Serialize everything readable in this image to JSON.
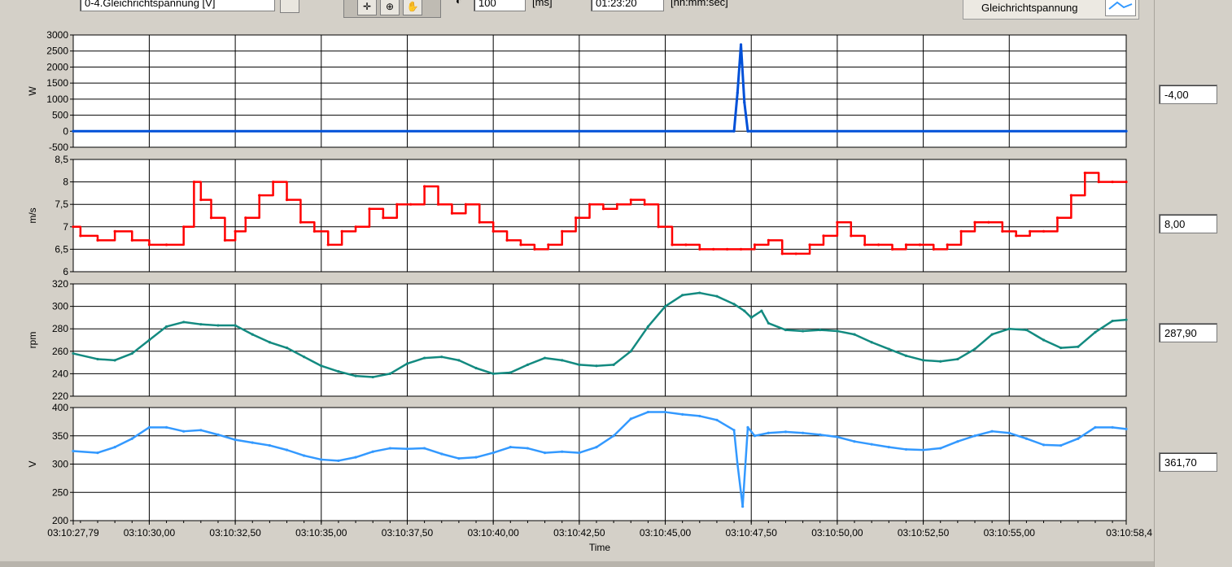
{
  "toolbar": {
    "channel_select": "0-4.Gleichrichtspannung [V]",
    "interval_value": "100",
    "interval_unit": "[ms]",
    "time_value": "01:23:20",
    "time_unit": "[hh:mm:sec]"
  },
  "legend": {
    "name": "Gleichrichtspannung",
    "color": "#3399ff"
  },
  "value_displays": [
    "-4,00",
    "8,00",
    "287,90",
    "361,70"
  ],
  "chart_data": [
    {
      "type": "line",
      "ylabel": "W",
      "yticks": [
        "3000",
        "2500",
        "2000",
        "1500",
        "1000",
        "500",
        "0",
        "-500"
      ],
      "ylim": [
        -500,
        3000
      ],
      "color": "#0050d8",
      "x": [
        27.79,
        47.0,
        47.1,
        47.2,
        47.3,
        47.4,
        47.5,
        58.4
      ],
      "values": [
        0,
        0,
        1200,
        2700,
        900,
        0,
        0,
        0
      ]
    },
    {
      "type": "line",
      "ylabel": "m/s",
      "yticks": [
        "8,5",
        "8",
        "7,5",
        "7",
        "6,5",
        "6"
      ],
      "ylim": [
        6,
        8.5
      ],
      "color": "#ff0000",
      "x": [
        27.79,
        28.0,
        28.5,
        29.0,
        29.5,
        30.0,
        30.5,
        31.0,
        31.3,
        31.5,
        31.8,
        32.2,
        32.5,
        32.8,
        33.2,
        33.6,
        34.0,
        34.4,
        34.8,
        35.2,
        35.6,
        36.0,
        36.4,
        36.8,
        37.2,
        37.6,
        38.0,
        38.4,
        38.8,
        39.2,
        39.6,
        40.0,
        40.4,
        40.8,
        41.2,
        41.6,
        42.0,
        42.4,
        42.8,
        43.2,
        43.6,
        44.0,
        44.4,
        44.8,
        45.2,
        45.6,
        46.0,
        46.4,
        46.8,
        47.2,
        47.6,
        48.0,
        48.4,
        48.8,
        49.2,
        49.6,
        50.0,
        50.4,
        50.8,
        51.2,
        51.6,
        52.0,
        52.4,
        52.8,
        53.2,
        53.6,
        54.0,
        54.4,
        54.8,
        55.2,
        55.6,
        56.0,
        56.4,
        56.8,
        57.2,
        57.6,
        58.0,
        58.4
      ],
      "values": [
        7.0,
        6.8,
        6.7,
        6.9,
        6.7,
        6.6,
        6.6,
        7.0,
        8.0,
        7.6,
        7.2,
        6.7,
        6.9,
        7.2,
        7.7,
        8.0,
        7.6,
        7.1,
        6.9,
        6.6,
        6.9,
        7.0,
        7.4,
        7.2,
        7.5,
        7.5,
        7.9,
        7.5,
        7.3,
        7.5,
        7.1,
        6.9,
        6.7,
        6.6,
        6.5,
        6.6,
        6.9,
        7.2,
        7.5,
        7.4,
        7.5,
        7.6,
        7.5,
        7.0,
        6.6,
        6.6,
        6.5,
        6.5,
        6.5,
        6.5,
        6.6,
        6.7,
        6.4,
        6.4,
        6.6,
        6.8,
        7.1,
        6.8,
        6.6,
        6.6,
        6.5,
        6.6,
        6.6,
        6.5,
        6.6,
        6.9,
        7.1,
        7.1,
        6.9,
        6.8,
        6.9,
        6.9,
        7.2,
        7.7,
        8.2,
        8.0,
        8.0,
        8.0
      ]
    },
    {
      "type": "line",
      "ylabel": "rpm",
      "yticks": [
        "320",
        "300",
        "280",
        "260",
        "240",
        "220"
      ],
      "ylim": [
        220,
        320
      ],
      "color": "#138a80",
      "x": [
        27.79,
        28.5,
        29.0,
        29.5,
        30.0,
        30.5,
        31.0,
        31.5,
        32.0,
        32.5,
        33.0,
        33.5,
        34.0,
        34.5,
        35.0,
        35.5,
        36.0,
        36.5,
        37.0,
        37.5,
        38.0,
        38.5,
        39.0,
        39.5,
        40.0,
        40.5,
        41.0,
        41.5,
        42.0,
        42.5,
        43.0,
        43.5,
        44.0,
        44.5,
        45.0,
        45.5,
        46.0,
        46.5,
        47.0,
        47.3,
        47.5,
        47.8,
        48.0,
        48.5,
        49.0,
        49.5,
        50.0,
        50.5,
        51.0,
        51.5,
        52.0,
        52.5,
        53.0,
        53.5,
        54.0,
        54.5,
        55.0,
        55.5,
        56.0,
        56.5,
        57.0,
        57.5,
        58.0,
        58.4
      ],
      "values": [
        258,
        253,
        252,
        258,
        270,
        282,
        286,
        284,
        283,
        283,
        275,
        268,
        263,
        255,
        247,
        242,
        238,
        237,
        240,
        249,
        254,
        255,
        252,
        245,
        240,
        241,
        248,
        254,
        252,
        248,
        247,
        248,
        260,
        282,
        300,
        310,
        312,
        309,
        302,
        296,
        290,
        296,
        285,
        279,
        278,
        279,
        278,
        275,
        268,
        262,
        256,
        252,
        251,
        253,
        262,
        275,
        280,
        279,
        270,
        263,
        264,
        277,
        287,
        288
      ]
    },
    {
      "type": "line",
      "ylabel": "V",
      "yticks": [
        "400",
        "350",
        "300",
        "250",
        "200"
      ],
      "ylim": [
        200,
        400
      ],
      "color": "#3399ff",
      "x": [
        27.79,
        28.5,
        29.0,
        29.5,
        30.0,
        30.5,
        31.0,
        31.5,
        32.0,
        32.5,
        33.0,
        33.5,
        34.0,
        34.5,
        35.0,
        35.5,
        36.0,
        36.5,
        37.0,
        37.5,
        38.0,
        38.5,
        39.0,
        39.5,
        40.0,
        40.5,
        41.0,
        41.5,
        42.0,
        42.5,
        43.0,
        43.5,
        44.0,
        44.5,
        45.0,
        45.5,
        46.0,
        46.5,
        47.0,
        47.1,
        47.25,
        47.4,
        47.6,
        48.0,
        48.5,
        49.0,
        49.5,
        50.0,
        50.5,
        51.0,
        51.5,
        52.0,
        52.5,
        53.0,
        53.5,
        54.0,
        54.5,
        55.0,
        55.5,
        56.0,
        56.5,
        57.0,
        57.5,
        58.0,
        58.4
      ],
      "values": [
        323,
        320,
        330,
        345,
        365,
        365,
        358,
        360,
        352,
        343,
        338,
        333,
        325,
        315,
        308,
        306,
        312,
        322,
        328,
        327,
        328,
        318,
        310,
        312,
        320,
        330,
        328,
        320,
        322,
        320,
        330,
        350,
        380,
        392,
        392,
        388,
        385,
        378,
        360,
        300,
        225,
        365,
        350,
        355,
        357,
        355,
        352,
        348,
        340,
        335,
        330,
        326,
        325,
        328,
        340,
        350,
        358,
        355,
        345,
        334,
        333,
        345,
        365,
        365,
        362
      ]
    }
  ],
  "xaxis": {
    "label": "Time",
    "ticks": [
      {
        "t": 27.79,
        "label": "03:10:27,79"
      },
      {
        "t": 30.0,
        "label": "03:10:30,00"
      },
      {
        "t": 32.5,
        "label": "03:10:32,50"
      },
      {
        "t": 35.0,
        "label": "03:10:35,00"
      },
      {
        "t": 37.5,
        "label": "03:10:37,50"
      },
      {
        "t": 40.0,
        "label": "03:10:40,00"
      },
      {
        "t": 42.5,
        "label": "03:10:42,50"
      },
      {
        "t": 45.0,
        "label": "03:10:45,00"
      },
      {
        "t": 47.5,
        "label": "03:10:47,50"
      },
      {
        "t": 50.0,
        "label": "03:10:50,00"
      },
      {
        "t": 52.5,
        "label": "03:10:52,50"
      },
      {
        "t": 55.0,
        "label": "03:10:55,00"
      },
      {
        "t": 58.4,
        "label": "03:10:58,4"
      }
    ],
    "range": [
      27.79,
      58.4
    ]
  }
}
